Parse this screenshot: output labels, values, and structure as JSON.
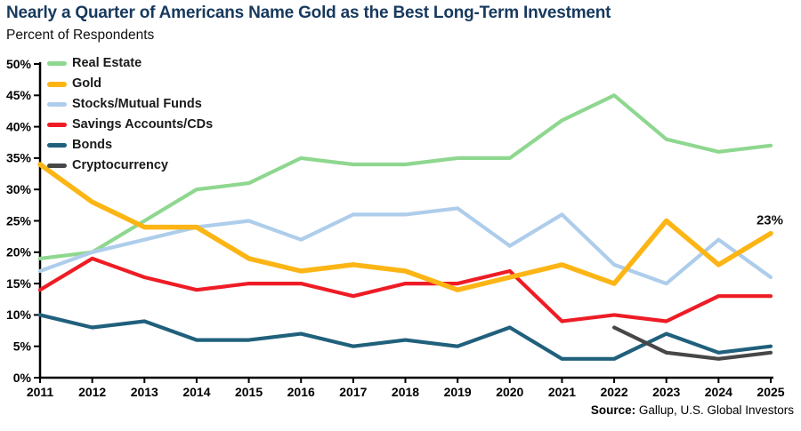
{
  "header": {
    "title": "Nearly a Quarter of Americans Name Gold as the Best Long-Term Investment",
    "subtitle": "Percent of Respondents"
  },
  "source": {
    "label": "Source:",
    "text": "Gallup, U.S. Global Investors"
  },
  "theme": {
    "title_color": "#17395d",
    "axis_color": "#000000",
    "text_color": "#1a1a1a",
    "background": "#ffffff"
  },
  "chart_data": {
    "type": "line",
    "title": "Nearly a Quarter of Americans Name Gold as the Best Long-Term Investment",
    "subtitle": "Percent of Respondents",
    "x": [
      2011,
      2012,
      2013,
      2014,
      2015,
      2016,
      2017,
      2018,
      2019,
      2020,
      2021,
      2022,
      2023,
      2024,
      2025
    ],
    "ylim": [
      0,
      50
    ],
    "y_tick_step": 5,
    "y_tick_suffix": "%",
    "grid": false,
    "legend_position": "top-left",
    "series": [
      {
        "name": "Real Estate",
        "color": "#8ed78f",
        "stroke_width": 4.2,
        "values": [
          19,
          20,
          25,
          30,
          31,
          35,
          34,
          34,
          35,
          35,
          41,
          45,
          38,
          36,
          37
        ]
      },
      {
        "name": "Gold",
        "color": "#fcb515",
        "stroke_width": 5.5,
        "values": [
          34,
          28,
          24,
          24,
          19,
          17,
          18,
          17,
          14,
          16,
          18,
          15,
          25,
          18,
          23
        ]
      },
      {
        "name": "Stocks/Mutual Funds",
        "color": "#aecdeb",
        "stroke_width": 4.2,
        "values": [
          17,
          20,
          22,
          24,
          25,
          22,
          26,
          26,
          27,
          21,
          26,
          18,
          15,
          22,
          16
        ]
      },
      {
        "name": "Savings Accounts/CDs",
        "color": "#ee1c25",
        "stroke_width": 4.2,
        "values": [
          14,
          19,
          16,
          14,
          15,
          15,
          13,
          15,
          15,
          17,
          9,
          10,
          9,
          13,
          13
        ]
      },
      {
        "name": "Bonds",
        "color": "#20607c",
        "stroke_width": 4.2,
        "values": [
          10,
          8,
          9,
          6,
          6,
          7,
          5,
          6,
          5,
          8,
          3,
          3,
          7,
          4,
          5
        ]
      },
      {
        "name": "Cryptocurrency",
        "color": "#474747",
        "stroke_width": 4.2,
        "values": [
          null,
          null,
          null,
          null,
          null,
          null,
          null,
          null,
          null,
          null,
          null,
          8,
          4,
          3,
          4
        ]
      }
    ],
    "draw_order": [
      "Real Estate",
      "Stocks/Mutual Funds",
      "Savings Accounts/CDs",
      "Bonds",
      "Cryptocurrency",
      "Gold"
    ],
    "annotation": {
      "text": "23%",
      "series": "Gold",
      "x": 2025,
      "y": 23
    }
  }
}
